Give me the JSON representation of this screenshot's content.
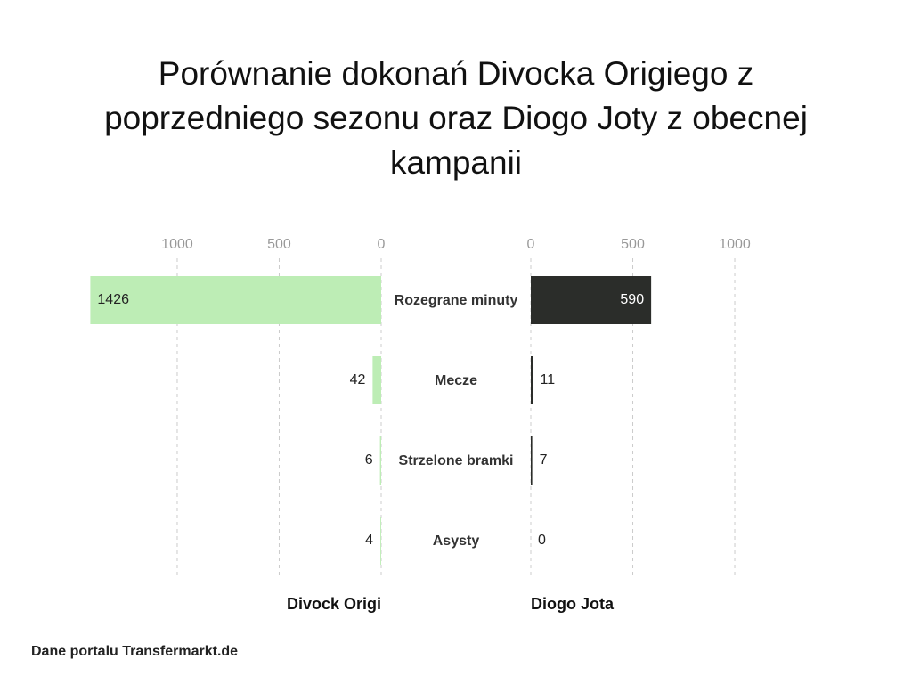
{
  "chart_data": {
    "type": "butterfly",
    "title": "Porównanie dokonań Divocka Origiego z poprzedniego sezonu oraz Diogo Joty z obecnej kampanii",
    "categories": [
      "Rozegrane minuty",
      "Mecze",
      "Strzelone bramki",
      "Asysty"
    ],
    "series": [
      {
        "name": "Divock Origi",
        "color": "#bdedb5",
        "values": [
          1426,
          42,
          6,
          4
        ]
      },
      {
        "name": "Diogo Jota",
        "color": "#2b2d2a",
        "values": [
          590,
          11,
          7,
          0
        ]
      }
    ],
    "xlim": [
      0,
      1430
    ],
    "xticks": [
      0,
      500,
      1000
    ],
    "grid": true,
    "source": "Dane portalu Transfermarkt.de"
  }
}
